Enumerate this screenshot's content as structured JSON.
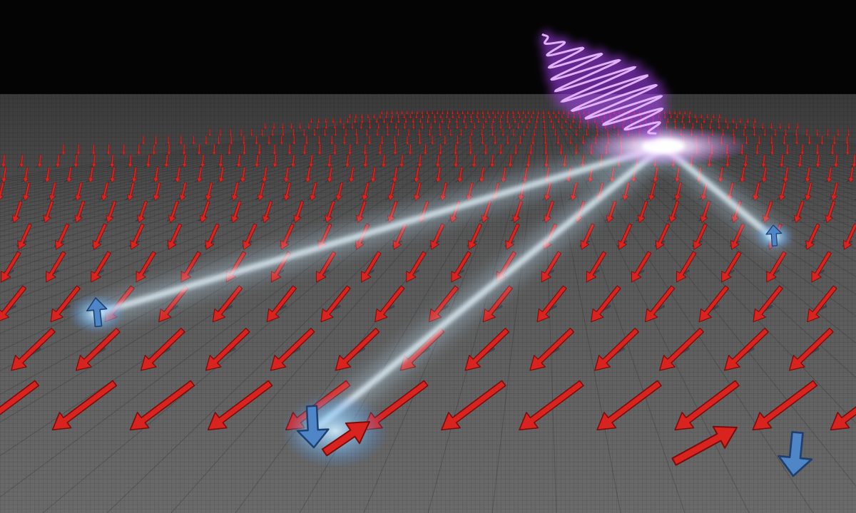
{
  "scene": {
    "subject": "spin-lattice-illustration",
    "colors": {
      "sky": "#040404",
      "surface": "#5a5a5a",
      "surface_grid": "#3f3f3f",
      "spin_arrow": "#d8231f",
      "spin_arrow_dark": "#7a0c0a",
      "flipped_spin": "#4f86c8",
      "beam_glow": "#bfe6ff",
      "laser_pulse": "#b044ff"
    },
    "icons": {
      "lattice_spin": "red-arrow-icon",
      "flipped_spin": "blue-arrow-icon",
      "pulse": "laser-pulse-icon"
    }
  }
}
